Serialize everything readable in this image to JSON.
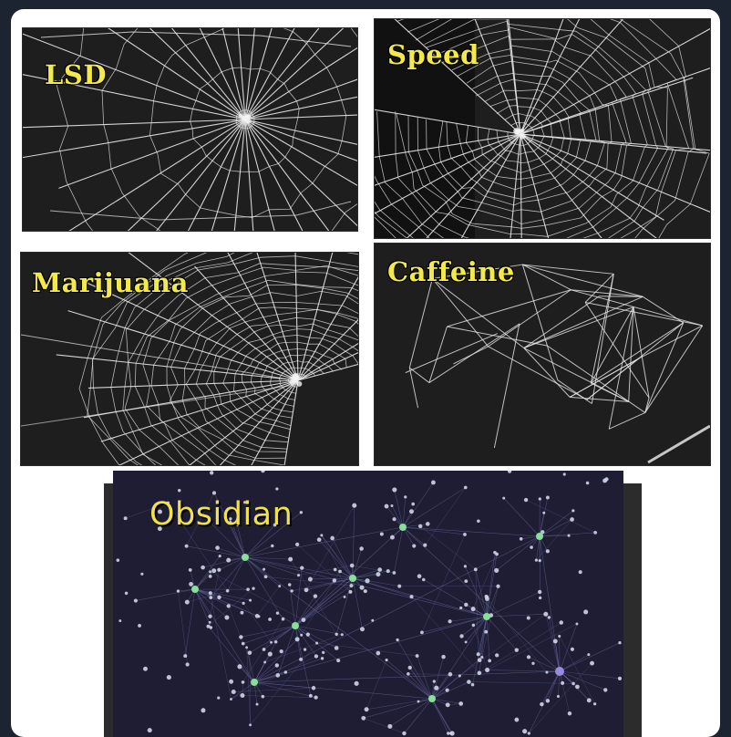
{
  "panels": [
    {
      "id": "lsd",
      "label": "LSD",
      "web": "lsd"
    },
    {
      "id": "speed",
      "label": "Speed",
      "web": "speed"
    },
    {
      "id": "marijuana",
      "label": "Marijuana",
      "web": "marijuana"
    },
    {
      "id": "caffeine",
      "label": "Caffeine",
      "web": "caffeine"
    },
    {
      "id": "obsidian",
      "label": "Obsidian",
      "web": "graph"
    }
  ],
  "colors": {
    "label": "#f3e94a",
    "web_bg": "#1e1e1e",
    "graph_bg": "#1f1d33",
    "graph_node": "#cfd6e6",
    "graph_hub": "#8ee89a",
    "graph_edge": "#6a6fa8"
  }
}
